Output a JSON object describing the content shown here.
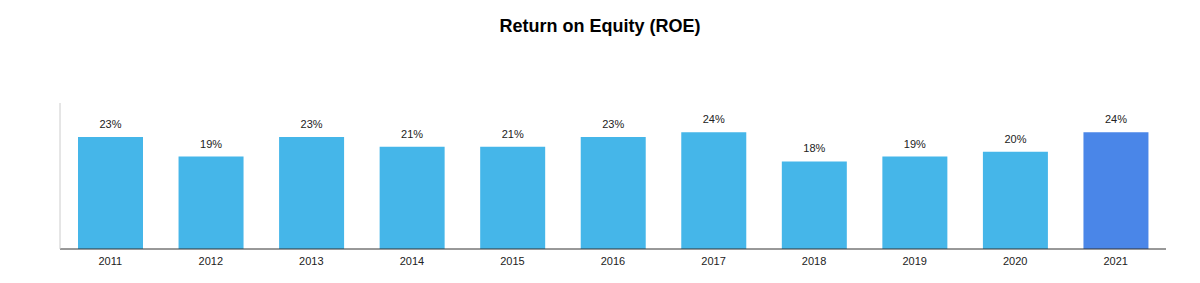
{
  "chart_data": {
    "type": "bar",
    "title": "Return on Equity (ROE)",
    "categories": [
      "2011",
      "2012",
      "2013",
      "2014",
      "2015",
      "2016",
      "2017",
      "2018",
      "2019",
      "2020",
      "2021"
    ],
    "values": [
      23,
      19,
      23,
      21,
      21,
      23,
      24,
      18,
      19,
      20,
      24
    ],
    "value_labels": [
      "23%",
      "19%",
      "23%",
      "21%",
      "21%",
      "23%",
      "24%",
      "18%",
      "19%",
      "20%",
      "24%"
    ],
    "colors": [
      "#45b6e9",
      "#45b6e9",
      "#45b6e9",
      "#45b6e9",
      "#45b6e9",
      "#45b6e9",
      "#45b6e9",
      "#45b6e9",
      "#45b6e9",
      "#45b6e9",
      "#4a86e8"
    ],
    "ylim": [
      0,
      30
    ],
    "data_labels": true,
    "tick_labels": "x",
    "grid": false
  }
}
